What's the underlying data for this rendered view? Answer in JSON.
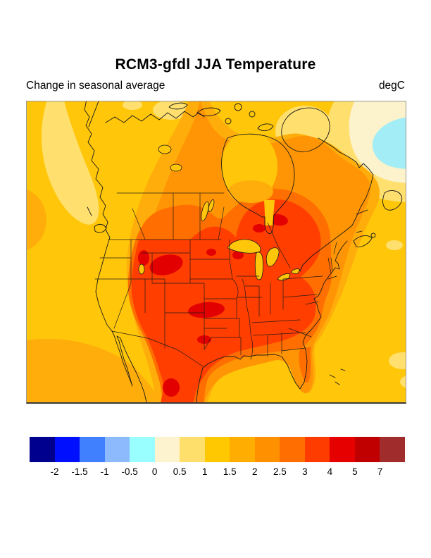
{
  "figure": {
    "title": "RCM3-gfdl JJA Temperature",
    "subtitle": "Change in seasonal average",
    "units": "degC"
  },
  "map": {
    "region": "North America",
    "kind": "filled contour map of seasonal temperature change",
    "colors": {
      "gold": "#FFC60A",
      "amber": "#FFAD0A",
      "orange": "#FF9505",
      "dark_orange": "#FF6E00",
      "orange_red": "#FF3E00",
      "red": "#E30000",
      "pale_yellow": "#FFE06E",
      "cream": "#FCF2CC",
      "cyan": "#A3EDF6",
      "coastline": "#1a1a1a"
    }
  },
  "colorbar": {
    "tick_labels": [
      "-2",
      "-1.5",
      "-1",
      "-0.5",
      "0",
      "0.5",
      "1",
      "1.5",
      "2",
      "2.5",
      "3",
      "4",
      "5",
      "7"
    ],
    "segment_colors": [
      "#00008F",
      "#0010FF",
      "#4080FF",
      "#8CBAFC",
      "#99FFFF",
      "#FDF3CE",
      "#FFDF6B",
      "#FFC800",
      "#FFAD00",
      "#FF9100",
      "#FF6E00",
      "#FF3C00",
      "#E60000",
      "#C00000",
      "#A02C2C"
    ]
  },
  "chart_data": {
    "type": "heatmap",
    "title": "RCM3-gfdl JJA Temperature",
    "subtitle": "Change in seasonal average",
    "units": "degC",
    "legend_position": "bottom",
    "legend_levels": [
      -2,
      -1.5,
      -1,
      -0.5,
      0,
      0.5,
      1,
      1.5,
      2,
      2.5,
      3,
      4,
      5,
      7
    ],
    "region": "North America",
    "notable_values": {
      "continental_interior_USA": "3 to 4 degC warming, local maxima 4-5 degC (Wyoming/Utah, Kansas-Oklahoma, Ontario-Quebec)",
      "coastal_oceans": "1 to 2 degC",
      "pacific_northwest_coast": "0.5 to 1 degC",
      "north_atlantic_corner": "-0.5 to 0 degC (slight cooling patch)"
    }
  }
}
